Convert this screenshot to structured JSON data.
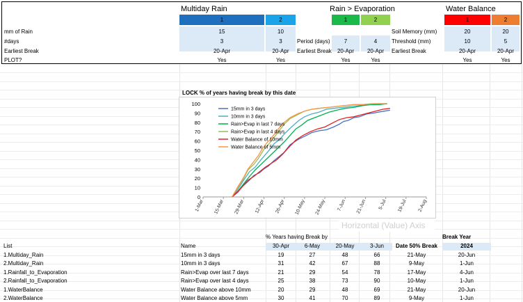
{
  "top": {
    "groups": [
      {
        "title": "Multiday Rain",
        "col_labels": [
          "1",
          "2"
        ],
        "colors": [
          "#1f6fbf",
          "#1aa3e8"
        ]
      },
      {
        "title": "Rain > Evaporation",
        "col_labels": [
          "1",
          "2"
        ],
        "colors": [
          "#1bb84a",
          "#92d050"
        ]
      },
      {
        "title": "Water Balance",
        "col_labels": [
          "1",
          "2"
        ],
        "colors": [
          "#ff0000",
          "#ed7d31"
        ]
      }
    ],
    "rows": [
      {
        "label": "mm of Rain",
        "mr": [
          "15",
          "10"
        ],
        "re_label": "",
        "re": [
          "",
          ""
        ],
        "wb_label": "Soil Memory (mm)",
        "wb": [
          "20",
          "20"
        ]
      },
      {
        "label": "#days",
        "mr": [
          "3",
          "3"
        ],
        "re_label": "Period (days)",
        "re": [
          "7",
          "4"
        ],
        "wb_label": "Threshold (mm)",
        "wb": [
          "10",
          "5"
        ]
      },
      {
        "label": "Earliest Break",
        "mr": [
          "20-Apr",
          "20-Apr"
        ],
        "re_label": "Earliest Break",
        "re": [
          "20-Apr",
          "20-Apr"
        ],
        "wb_label": "Earliest Break",
        "wb": [
          "20-Apr",
          "20-Apr"
        ]
      },
      {
        "label": "PLOT?",
        "mr": [
          "Yes",
          "Yes"
        ],
        "re_label": "",
        "re": [
          "Yes",
          "Yes"
        ],
        "wb_label": "",
        "wb": [
          "Yes",
          "Yes"
        ]
      }
    ]
  },
  "chart_data": {
    "type": "line",
    "title": "LOCK % of years having break by this date",
    "xlabel": "Horizontal (Value) Axis",
    "ylim": [
      0,
      100
    ],
    "yticks": [
      0,
      10,
      20,
      30,
      40,
      50,
      60,
      70,
      80,
      90,
      100
    ],
    "xticks": [
      "1-Mar",
      "15-Mar",
      "29-Mar",
      "12-Apr",
      "26-Apr",
      "10-May",
      "24-May",
      "7-Jun",
      "21-Jun",
      "5-Jul",
      "19-Jul",
      "2-Aug"
    ],
    "legend_position": "top-left",
    "series": [
      {
        "name": "15mm in 3 days",
        "color": "#4472c4",
        "x": [
          20,
          24,
          27,
          32,
          35,
          39,
          42,
          45,
          49,
          53,
          56,
          60,
          66,
          70,
          75,
          80,
          85,
          90,
          94,
          97,
          100,
          104,
          108,
          113,
          118,
          121,
          125,
          129
        ],
        "y": [
          0,
          5,
          11,
          18,
          23,
          26,
          30,
          33,
          39,
          44,
          48,
          56,
          62,
          65,
          69,
          71,
          72,
          75,
          78,
          81,
          82,
          85,
          86,
          89,
          90,
          91,
          92,
          93
        ]
      },
      {
        "name": "10mm in 3 days",
        "color": "#4bacc6",
        "x": [
          20,
          24,
          28,
          32,
          36,
          40,
          45,
          49,
          53,
          57,
          61,
          66,
          70,
          75,
          80,
          85,
          90,
          96,
          102,
          108,
          114,
          120,
          126
        ],
        "y": [
          0,
          8,
          18,
          27,
          32,
          40,
          49,
          57,
          62,
          69,
          75,
          82,
          86,
          89,
          91,
          94,
          95,
          96,
          97,
          98,
          99,
          100,
          100
        ]
      },
      {
        "name": "Rain>Evap in last 7 days",
        "color": "#00b050",
        "x": [
          20,
          24,
          28,
          32,
          36,
          40,
          44,
          48,
          52,
          56,
          60,
          64,
          68,
          72,
          77,
          82,
          87,
          92,
          98,
          104,
          110,
          116,
          122,
          127
        ],
        "y": [
          0,
          6,
          14,
          22,
          29,
          35,
          41,
          47,
          53,
          59,
          66,
          73,
          77,
          82,
          85,
          88,
          91,
          93,
          95,
          96,
          98,
          99,
          99,
          100
        ]
      },
      {
        "name": "Rain>Evap in last 4 days",
        "color": "#9bbb59",
        "x": [
          20,
          24,
          28,
          31,
          35,
          38,
          42,
          45,
          48,
          52,
          56,
          60,
          65,
          70,
          75,
          80,
          86,
          92,
          98,
          104,
          110,
          116,
          122,
          126
        ],
        "y": [
          0,
          10,
          20,
          29,
          35,
          41,
          51,
          56,
          62,
          70,
          78,
          84,
          88,
          92,
          94,
          95,
          96,
          97,
          98,
          99,
          99,
          100,
          100,
          100
        ]
      },
      {
        "name": "Water Balance of 10mm",
        "color": "#e02020",
        "x": [
          20,
          24,
          27,
          31,
          35,
          39,
          43,
          47,
          51,
          55,
          59,
          64,
          69,
          74,
          79,
          84,
          89,
          94,
          99,
          104,
          109,
          114,
          119,
          124,
          129
        ],
        "y": [
          0,
          6,
          11,
          18,
          22,
          27,
          32,
          36,
          40,
          46,
          53,
          61,
          66,
          70,
          73,
          75,
          79,
          83,
          85,
          86,
          88,
          90,
          92,
          94,
          95
        ]
      },
      {
        "name": "Water Balance of 5mm",
        "color": "#f79646",
        "x": [
          20,
          24,
          28,
          31,
          34,
          38,
          41,
          44,
          48,
          52,
          56,
          60,
          65,
          70,
          75,
          80,
          86,
          92,
          98,
          104,
          110,
          118,
          126
        ],
        "y": [
          0,
          11,
          21,
          30,
          36,
          44,
          52,
          58,
          65,
          73,
          80,
          85,
          89,
          92,
          94,
          95,
          96,
          97,
          98,
          99,
          99,
          100,
          100
        ]
      }
    ]
  },
  "bottom": {
    "table_title": "% Years having Break by",
    "break_year_title": "Break Year",
    "headers": {
      "list": "List",
      "name": "Name",
      "dates": [
        "30-Apr",
        "6-May",
        "20-May",
        "3-Jun"
      ],
      "median": "Date 50% Break",
      "year": "2024"
    },
    "rows": [
      {
        "list": "1.Multiday_Rain",
        "name": "15mm in 3 days",
        "vals": [
          "19",
          "27",
          "48",
          "66"
        ],
        "median": "21-May",
        "year": "20-Jun"
      },
      {
        "list": "2.Multiday_Rain",
        "name": "10mm in 3 days",
        "vals": [
          "31",
          "42",
          "67",
          "88"
        ],
        "median": "9-May",
        "year": "1-Jun"
      },
      {
        "list": "1.Rainfall_to_Evaporation",
        "name": "Rain>Evap over last 7 days",
        "vals": [
          "21",
          "29",
          "54",
          "78"
        ],
        "median": "17-May",
        "year": "4-Jun"
      },
      {
        "list": "2.Rainfall_to_Evaporation",
        "name": "Rain>Evap over last 4 days",
        "vals": [
          "25",
          "38",
          "73",
          "90"
        ],
        "median": "10-May",
        "year": "1-Jun"
      },
      {
        "list": "1.WaterBalance",
        "name": "Water Balance above 10mm",
        "vals": [
          "20",
          "29",
          "48",
          "69"
        ],
        "median": "21-May",
        "year": "20-Jun"
      },
      {
        "list": "2.WaterBalance",
        "name": "Water Balance above 5mm",
        "vals": [
          "30",
          "41",
          "70",
          "89"
        ],
        "median": "9-May",
        "year": "1-Jun"
      }
    ]
  }
}
